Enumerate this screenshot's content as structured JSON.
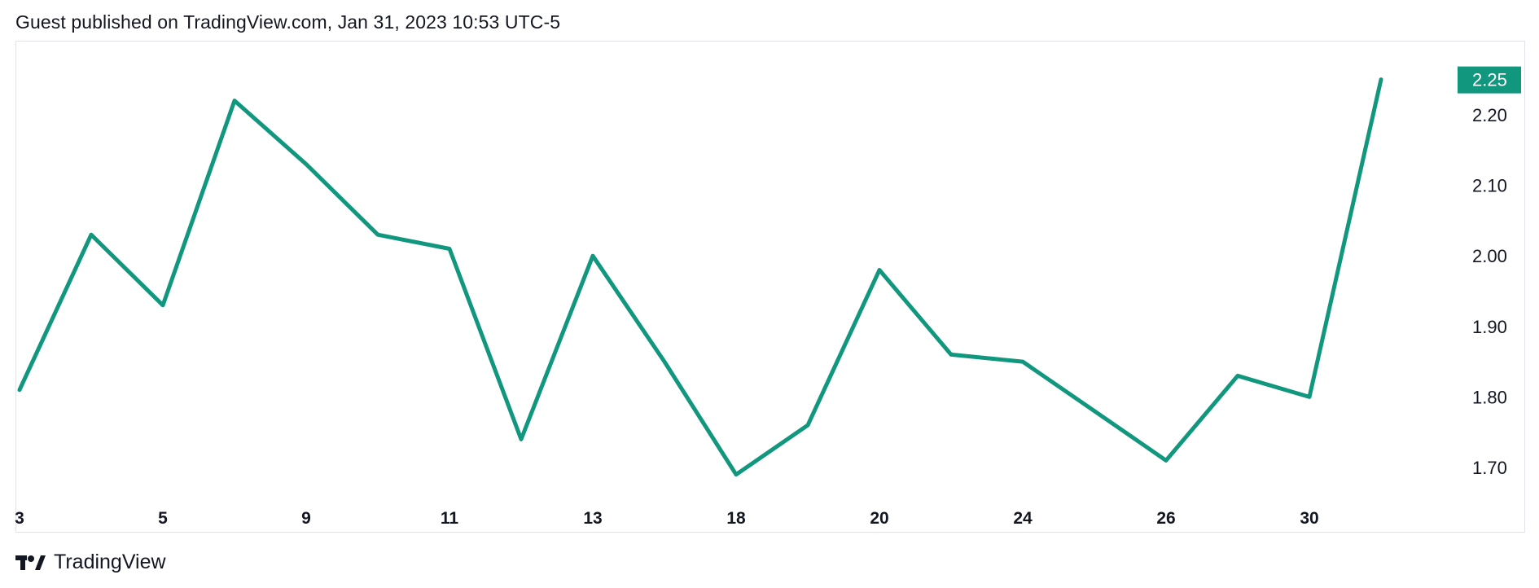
{
  "header": {
    "text": "Guest published on TradingView.com, Jan 31, 2023 10:53 UTC-5"
  },
  "brand": {
    "logo_text": "TradingView",
    "icon": "tradingview-logo-icon"
  },
  "colors": {
    "line": "#12977f",
    "last_price_bg": "#12977f",
    "grid": "#e0e3eb"
  },
  "chart_data": {
    "type": "line",
    "series": [
      {
        "values": [
          1.81,
          2.03,
          1.93,
          2.22,
          2.13,
          2.03,
          2.01,
          1.74,
          2.0,
          1.85,
          1.69,
          1.76,
          1.98,
          1.86,
          1.85,
          1.78,
          1.71,
          1.83,
          1.8,
          2.25
        ]
      }
    ],
    "x_tick_labels": [
      "3",
      "5",
      "9",
      "11",
      "13",
      "18",
      "20",
      "24",
      "26",
      "30"
    ],
    "y_ticks": [
      "1.70",
      "1.80",
      "1.90",
      "2.00",
      "2.10",
      "2.20"
    ],
    "ylim": [
      1.655,
      2.305
    ],
    "last_price_label": "2.25",
    "grid": false
  }
}
